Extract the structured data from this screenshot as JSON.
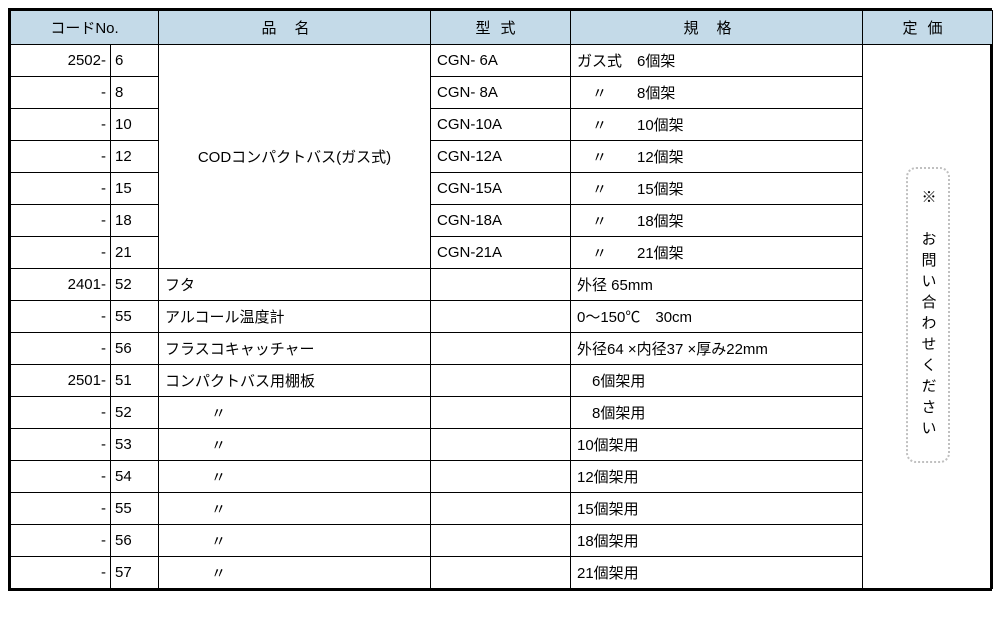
{
  "headers": {
    "code": "コードNo.",
    "name": "品名",
    "model": "型式",
    "spec": "規格",
    "price": "定価"
  },
  "rows": [
    {
      "code_a": "2502-",
      "code_b": "6",
      "model": "CGN- 6A",
      "spec": "ガス式　6個架"
    },
    {
      "code_a": "-",
      "code_b": "8",
      "model": "CGN- 8A",
      "spec": "　〃　　8個架"
    },
    {
      "code_a": "-",
      "code_b": "10",
      "model": "CGN-10A",
      "spec": "　〃　　10個架"
    },
    {
      "code_a": "-",
      "code_b": "12",
      "model": "CGN-12A",
      "spec": "　〃　　12個架"
    },
    {
      "code_a": "-",
      "code_b": "15",
      "model": "CGN-15A",
      "spec": "　〃　　15個架"
    },
    {
      "code_a": "-",
      "code_b": "18",
      "model": "CGN-18A",
      "spec": "　〃　　18個架"
    },
    {
      "code_a": "-",
      "code_b": "21",
      "model": "CGN-21A",
      "spec": "　〃　　21個架"
    }
  ],
  "name_group1": "CODコンパクトバス(ガス式)",
  "rows2": [
    {
      "code_a": "2401-",
      "code_b": "52",
      "name": "フタ",
      "model": "",
      "spec": "外径 65mm"
    },
    {
      "code_a": "-",
      "code_b": "55",
      "name": "アルコール温度計",
      "model": "",
      "spec": " 0～150℃　30cm"
    },
    {
      "code_a": "-",
      "code_b": "56",
      "name": "フラスコキャッチャー",
      "model": "",
      "spec": "外径64 ×内径37 ×厚み22mm"
    },
    {
      "code_a": "2501-",
      "code_b": "51",
      "name": "コンパクトバス用棚板",
      "model": "",
      "spec": "　6個架用"
    },
    {
      "code_a": "-",
      "code_b": "52",
      "name": "〃",
      "model": "",
      "spec": "　8個架用",
      "ditto": true
    },
    {
      "code_a": "-",
      "code_b": "53",
      "name": "〃",
      "model": "",
      "spec": "10個架用",
      "ditto": true
    },
    {
      "code_a": "-",
      "code_b": "54",
      "name": "〃",
      "model": "",
      "spec": "12個架用",
      "ditto": true
    },
    {
      "code_a": "-",
      "code_b": "55",
      "name": "〃",
      "model": "",
      "spec": "15個架用",
      "ditto": true
    },
    {
      "code_a": "-",
      "code_b": "56",
      "name": "〃",
      "model": "",
      "spec": "18個架用",
      "ditto": true
    },
    {
      "code_a": "-",
      "code_b": "57",
      "name": "〃",
      "model": "",
      "spec": "21個架用",
      "ditto": true
    }
  ],
  "price_note": "※　お問い合わせください",
  "style": {
    "header_bg": "#c4dae8",
    "border_color": "#000000",
    "dotted_border": "#c0c0c0",
    "font_size": 15
  }
}
